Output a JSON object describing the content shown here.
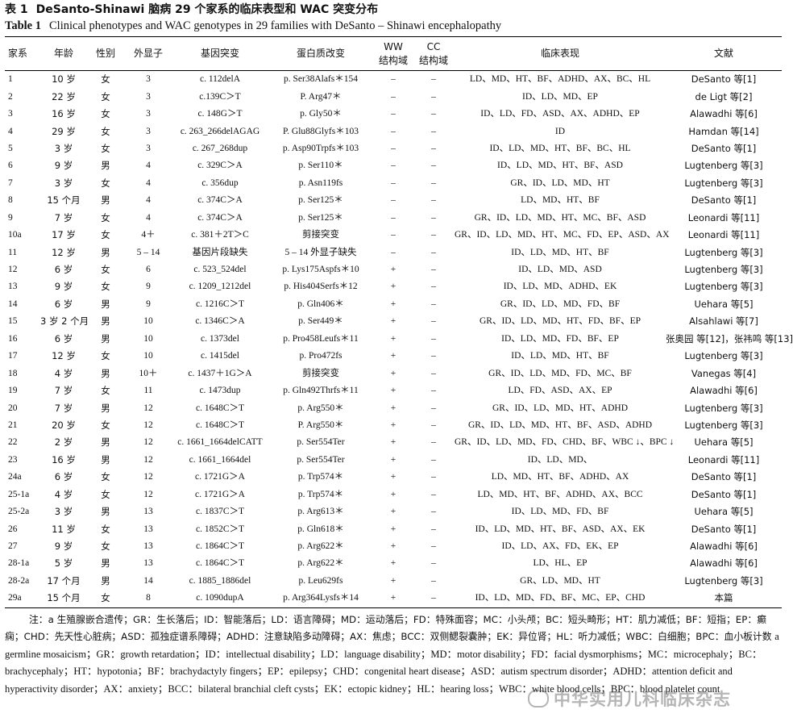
{
  "title_cn": {
    "label": "表 1",
    "text": "DeSanto-Shinawi 脑病 29 个家系的临床表型和 WAC 突变分布"
  },
  "title_en": {
    "label": "Table 1",
    "text": "Clinical phenotypes and WAC genotypes in 29 families with DeSanto – Shinawi encephalopathy"
  },
  "headers": [
    "家系",
    "年龄",
    "性别",
    "外显子",
    "基因突变",
    "蛋白质改变",
    "WW\n结构域",
    "CC\n结构域",
    "临床表现",
    "文献"
  ],
  "rows": [
    [
      "1",
      "10 岁",
      "女",
      "3",
      "c. 112delA",
      "p. Ser38Alafs＊154",
      "–",
      "–",
      "LD、MD、HT、BF、ADHD、AX、BC、HL",
      "DeSanto 等[1]"
    ],
    [
      "2",
      "22 岁",
      "女",
      "3",
      "c.139C＞T",
      "P. Arg47＊",
      "–",
      "–",
      "ID、LD、MD、EP",
      "de Ligt 等[2]"
    ],
    [
      "3",
      "16 岁",
      "女",
      "3",
      "c. 148G＞T",
      "p. Gly50＊",
      "–",
      "–",
      "ID、LD、FD、ASD、AX、ADHD、EP",
      "Alawadhi 等[6]"
    ],
    [
      "4",
      "29 岁",
      "女",
      "3",
      "c. 263_266delAGAG",
      "P. Glu88Glyfs＊103",
      "–",
      "–",
      "ID",
      "Hamdan 等[14]"
    ],
    [
      "5",
      "3 岁",
      "女",
      "3",
      "c. 267_268dup",
      "p. Asp90Trpfs＊103",
      "–",
      "–",
      "ID、LD、MD、HT、BF、BC、HL",
      "DeSanto 等[1]"
    ],
    [
      "6",
      "9 岁",
      "男",
      "4",
      "c. 329C＞A",
      "p. Ser110＊",
      "–",
      "–",
      "ID、LD、MD、HT、BF、ASD",
      "Lugtenberg 等[3]"
    ],
    [
      "7",
      "3 岁",
      "女",
      "4",
      "c. 356dup",
      "p. Asn119fs",
      "–",
      "–",
      "GR、ID、LD、MD、HT",
      "Lugtenberg 等[3]"
    ],
    [
      "8",
      "15 个月",
      "男",
      "4",
      "c. 374C＞A",
      "p. Ser125＊",
      "–",
      "–",
      "LD、MD、HT、BF",
      "DeSanto 等[1]"
    ],
    [
      "9",
      "7 岁",
      "女",
      "4",
      "c. 374C＞A",
      "p. Ser125＊",
      "–",
      "–",
      "GR、ID、LD、MD、HT、MC、BF、ASD",
      "Leonardi 等[11]"
    ],
    [
      "10a",
      "17 岁",
      "女",
      "4＋",
      "c. 381＋2T＞C",
      "剪接突变",
      "–",
      "–",
      "GR、ID、LD、MD、HT、MC、FD、EP、ASD、AX",
      "Leonardi 等[11]"
    ],
    [
      "11",
      "12 岁",
      "男",
      "5 – 14",
      "基因片段缺失",
      "5 – 14 外显子缺失",
      "–",
      "–",
      "ID、LD、MD、HT、BF",
      "Lugtenberg 等[3]"
    ],
    [
      "12",
      "6 岁",
      "女",
      "6",
      "c. 523_524del",
      "p. Lys175Aspfs＊10",
      "+",
      "–",
      "ID、LD、MD、ASD",
      "Lugtenberg 等[3]"
    ],
    [
      "13",
      "9 岁",
      "女",
      "9",
      "c. 1209_1212del",
      "p. His404Serfs＊12",
      "+",
      "–",
      "ID、LD、MD、ADHD、EK",
      "Lugtenberg 等[3]"
    ],
    [
      "14",
      "6 岁",
      "男",
      "9",
      "c. 1216C＞T",
      "p. Gln406＊",
      "+",
      "–",
      "GR、ID、LD、MD、FD、BF",
      "Uehara 等[5]"
    ],
    [
      "15",
      "3 岁 2 个月",
      "男",
      "10",
      "c. 1346C＞A",
      "p. Ser449＊",
      "+",
      "–",
      "GR、ID、LD、MD、HT、FD、BF、EP",
      "Alsahlawi 等[7]"
    ],
    [
      "16",
      "6 岁",
      "男",
      "10",
      "c. 1373del",
      "p. Pro458Leufs＊11",
      "+",
      "–",
      "ID、LD、MD、FD、BF、EP",
      "张奥园 等[12]，张祎鸣 等[13]"
    ],
    [
      "17",
      "12 岁",
      "女",
      "10",
      "c. 1415del",
      "p. Pro472fs",
      "+",
      "–",
      "ID、LD、MD、HT、BF",
      "Lugtenberg 等[3]"
    ],
    [
      "18",
      "4 岁",
      "男",
      "10＋",
      "c. 1437＋1G＞A",
      "剪接突变",
      "+",
      "–",
      "GR、ID、LD、MD、FD、MC、BF",
      "Vanegas 等[4]"
    ],
    [
      "19",
      "7 岁",
      "女",
      "11",
      "c. 1473dup",
      "p. Gln492Thrfs＊11",
      "+",
      "–",
      "LD、FD、ASD、AX、EP",
      "Alawadhi 等[6]"
    ],
    [
      "20",
      "7 岁",
      "男",
      "12",
      "c. 1648C＞T",
      "p. Arg550＊",
      "+",
      "–",
      "GR、ID、LD、MD、HT、ADHD",
      "Lugtenberg 等[3]"
    ],
    [
      "21",
      "20 岁",
      "女",
      "12",
      "c. 1648C＞T",
      "P. Arg550＊",
      "+",
      "–",
      "GR、ID、LD、MD、HT、BF、ASD、ADHD",
      "Lugtenberg 等[3]"
    ],
    [
      "22",
      "2 岁",
      "男",
      "12",
      "c. 1661_1664delCATT",
      "p. Ser554Ter",
      "+",
      "–",
      "GR、ID、LD、MD、FD、CHD、BF、WBC ↓、BPC ↓",
      "Uehara 等[5]"
    ],
    [
      "23",
      "16 岁",
      "男",
      "12",
      "c. 1661_1664del",
      "p. Ser554Ter",
      "+",
      "–",
      "ID、LD、MD、",
      "Leonardi 等[11]"
    ],
    [
      "24a",
      "6 岁",
      "女",
      "12",
      "c. 1721G＞A",
      "p. Trp574＊",
      "+",
      "–",
      "LD、MD、HT、BF、ADHD、AX",
      "DeSanto 等[1]"
    ],
    [
      "25-1a",
      "4 岁",
      "女",
      "12",
      "c. 1721G＞A",
      "p. Trp574＊",
      "+",
      "–",
      "LD、MD、HT、BF、ADHD、AX、BCC",
      "DeSanto 等[1]"
    ],
    [
      "25-2a",
      "3 岁",
      "男",
      "13",
      "c. 1837C＞T",
      "p. Arg613＊",
      "+",
      "–",
      "ID、LD、MD、FD、BF",
      "Uehara 等[5]"
    ],
    [
      "26",
      "11 岁",
      "女",
      "13",
      "c. 1852C＞T",
      "p. Gln618＊",
      "+",
      "–",
      "ID、LD、MD、HT、BF、ASD、AX、EK",
      "DeSanto 等[1]"
    ],
    [
      "27",
      "9 岁",
      "女",
      "13",
      "c. 1864C＞T",
      "p. Arg622＊",
      "+",
      "–",
      "ID、LD、AX、FD、EK、EP",
      "Alawadhi 等[6]"
    ],
    [
      "28-1a",
      "5 岁",
      "男",
      "13",
      "c. 1864C＞T",
      "p. Arg622＊",
      "+",
      "–",
      "LD、HL、EP",
      "Alawadhi 等[6]"
    ],
    [
      "28-2a",
      "17 个月",
      "男",
      "14",
      "c. 1885_1886del",
      "p. Leu629fs",
      "+",
      "–",
      "GR、LD、MD、HT",
      "Lugtenberg 等[3]"
    ],
    [
      "29a",
      "15 个月",
      "女",
      "8",
      "c. 1090dupA",
      "p. Arg364Lysfs＊14",
      "+",
      "–",
      "ID、LD、MD、FD、BF、MC、EP、CHD",
      "本篇"
    ]
  ],
  "notes_cn": "注：a 生殖腺嵌合遗传；GR：生长落后；ID：智能落后；LD：语言障碍；MD：运动落后；FD：特殊面容；MC：小头颅；BC：短头畸形；HT：肌力减低；BF：短指；EP：癫痫；CHD：先天性心脏病；ASD：孤独症谱系障碍；ADHD：注意缺陷多动障碍；AX：焦虑；BCC：双侧鳃裂囊肿；EK：异位肾；HL：听力减低；WBC：白细胞；BPC：血小板计数",
  "notes_en": "a germline mosaicism；GR：growth retardation；ID：intellectual disability；LD：language disability；MD：motor disability；FD：facial dysmorphisms；MC：microcephaly；BC：brachycephaly；HT：hypotonia；BF：brachydactyly fingers；EP：epilepsy；CHD：congenital heart disease；ASD：autism spectrum disorder；ADHD：attention deficit and hyperactivity disorder；AX：anxiety；BCC：bilateral branchial cleft cysts；EK：ectopic kidney；HL：hearing loss；WBC：white blood cells；BPC：blood platelet count",
  "watermark": "中华实用儿科临床杂志"
}
